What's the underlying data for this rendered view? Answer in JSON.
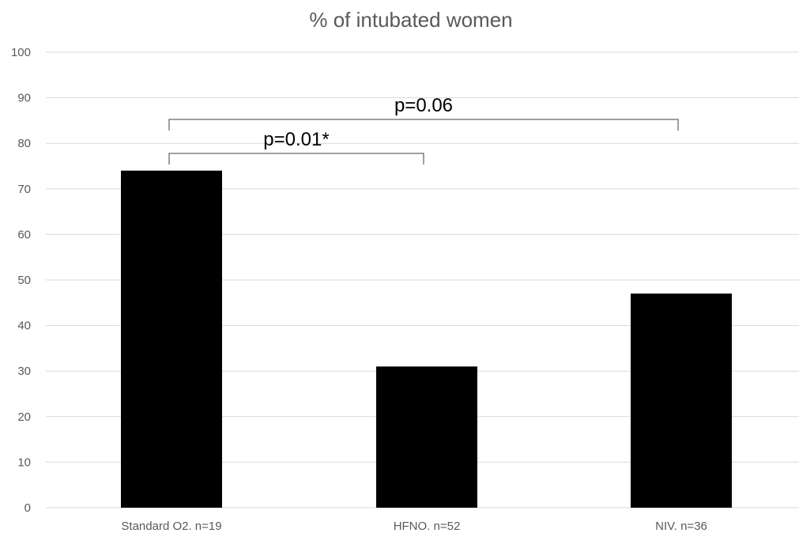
{
  "chart_data": {
    "type": "bar",
    "title": "% of intubated women",
    "xlabel": "",
    "ylabel": "",
    "categories": [
      "Standard O2. n=19",
      "HFNO. n=52",
      "NIV. n=36"
    ],
    "values": [
      74,
      31,
      47
    ],
    "ylim": [
      0,
      100
    ],
    "yticks": [
      "0",
      "10",
      "20",
      "30",
      "40",
      "50",
      "60",
      "70",
      "80",
      "90",
      "100"
    ],
    "grid": true,
    "bar_color": "#000000",
    "annotations": [
      {
        "label": "p=0.01*",
        "from": "Standard O2. n=19",
        "to": "HFNO. n=52"
      },
      {
        "label": "p=0.06",
        "from": "Standard O2. n=19",
        "to": "NIV. n=36"
      }
    ]
  }
}
